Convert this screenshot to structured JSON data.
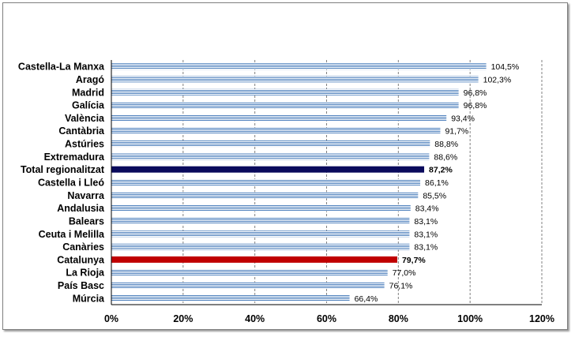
{
  "chart_data": {
    "type": "bar",
    "orientation": "horizontal",
    "title": "",
    "xlabel": "",
    "ylabel": "",
    "xlim": [
      0,
      120
    ],
    "xticks": [
      "0%",
      "20%",
      "40%",
      "60%",
      "80%",
      "100%",
      "120%"
    ],
    "grid": "vertical-dashed",
    "legend": "none",
    "categories": [
      "Castella-La Manxa",
      "Aragó",
      "Madrid",
      "Galícia",
      "València",
      "Cantàbria",
      "Astúries",
      "Extremadura",
      "Total regionalitzat",
      "Castella i Lleó",
      "Navarra",
      "Andalusia",
      "Balears",
      "Ceuta i Melilla",
      "Canàries",
      "Catalunya",
      "La Rioja",
      "País Basc",
      "Múrcia"
    ],
    "values": [
      104.5,
      102.3,
      96.8,
      96.8,
      93.4,
      91.7,
      88.8,
      88.6,
      87.2,
      86.1,
      85.5,
      83.4,
      83.1,
      83.1,
      83.1,
      79.7,
      77.0,
      76.1,
      66.4
    ],
    "labels": [
      "104,5%",
      "102,3%",
      "96,8%",
      "96,8%",
      "93,4%",
      "91,7%",
      "88,8%",
      "88,6%",
      "87,2%",
      "86,1%",
      "85,5%",
      "83,4%",
      "83,1%",
      "83,1%",
      "83,1%",
      "79,7%",
      "77,0%",
      "76,1%",
      "66,4%"
    ],
    "highlight": {
      "Total regionalitzat": "#0a0a5c",
      "Catalunya": "#c00000"
    },
    "colors": {
      "default": "#4f81bd",
      "stripe": "#ffffff"
    }
  }
}
